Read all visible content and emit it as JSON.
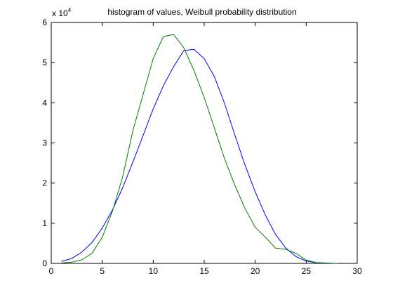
{
  "chart_data": {
    "type": "line",
    "title": "histogram of values, Weibull probability distribution",
    "xlabel": "",
    "ylabel": "",
    "xlim": [
      0,
      30
    ],
    "ylim": [
      0,
      60000
    ],
    "grid": false,
    "y_exponent_label": {
      "base": "x 10",
      "exponent": "4"
    },
    "x_ticks": [
      "0",
      "5",
      "10",
      "15",
      "20",
      "25",
      "30"
    ],
    "y_ticks": [
      "0",
      "1",
      "2",
      "3",
      "4",
      "5",
      "6"
    ],
    "series": [
      {
        "color": "#0000ff",
        "x": [
          1,
          2,
          3,
          4,
          5,
          6,
          7,
          8,
          9,
          10,
          11,
          12,
          13,
          14,
          15,
          16,
          17,
          18,
          19,
          20,
          21,
          22,
          23,
          24,
          25,
          26,
          27
        ],
        "y": [
          500,
          1200,
          2800,
          5200,
          8800,
          13300,
          18800,
          25200,
          31800,
          38500,
          44300,
          49000,
          53000,
          53300,
          51000,
          46500,
          39800,
          32000,
          24500,
          17800,
          12000,
          7200,
          3800,
          1700,
          600,
          150,
          30
        ]
      },
      {
        "color": "#008000",
        "x": [
          1,
          2,
          3,
          4,
          5,
          6,
          7,
          8,
          9,
          10,
          11,
          12,
          13,
          14,
          15,
          16,
          17,
          18,
          19,
          20,
          21,
          22,
          23,
          24,
          25,
          26,
          27,
          28
        ],
        "y": [
          100,
          300,
          900,
          2500,
          6500,
          13000,
          21500,
          33000,
          42000,
          51000,
          56500,
          57000,
          53700,
          48000,
          41300,
          33700,
          26000,
          19500,
          13700,
          9000,
          6500,
          3800,
          3500,
          2500,
          800,
          200,
          100,
          0
        ]
      }
    ]
  }
}
